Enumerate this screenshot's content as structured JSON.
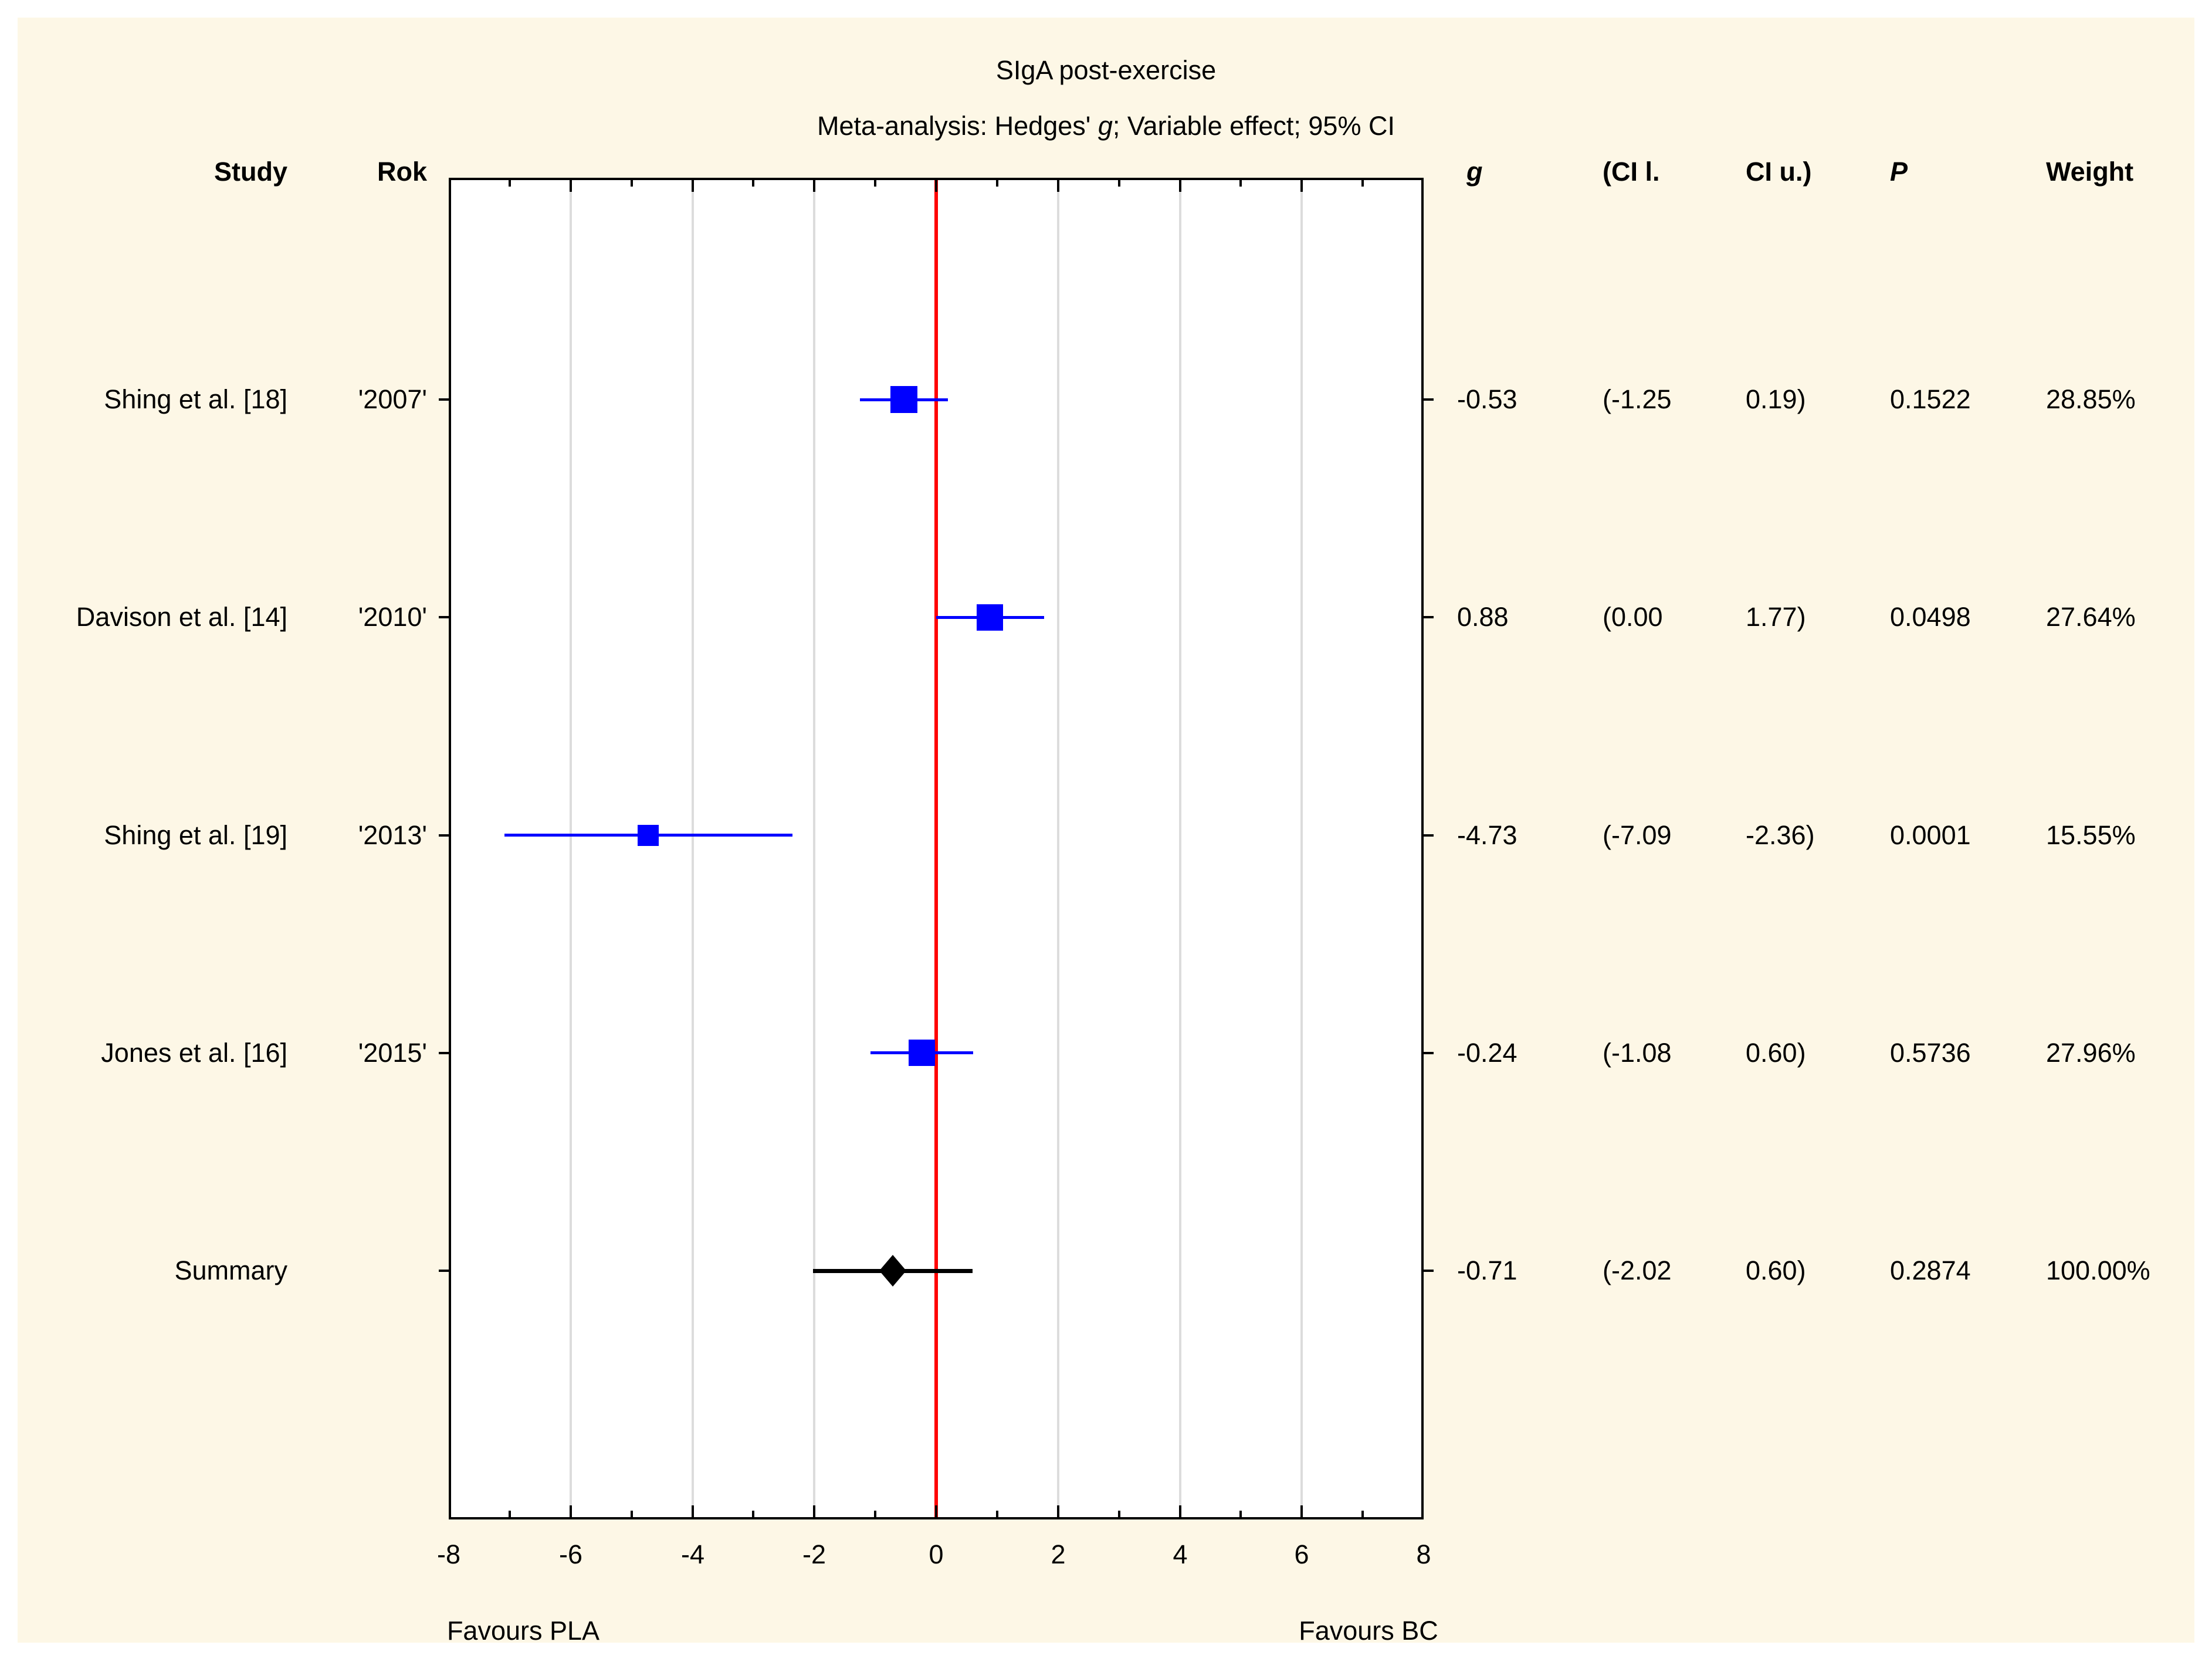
{
  "colors": {
    "panel_background": "#FDF7E6",
    "plot_background": "#FFFFFF",
    "marker_blue": "#0000FF",
    "zero_line_red": "#FF0000",
    "gridline_gray": "#DCDCDC",
    "text": "#000000",
    "summary_black": "#000000"
  },
  "chart_data": {
    "type": "scatter",
    "chart_kind": "forest_plot_meta_analysis",
    "title": "SIgA post-exercise",
    "subtitle_parts": {
      "pre": "Meta-analysis: Hedges' ",
      "italic": "g",
      "post": "; Variable effect; 95% CI"
    },
    "column_headers": {
      "study": "Study",
      "year": "Rok",
      "g": "g",
      "ci_lower": "(CI l.",
      "ci_upper": "CI u.)",
      "p": "P",
      "weight": "Weight"
    },
    "x_axis": {
      "min": -8,
      "max": 8,
      "tick_values": [
        -8,
        -6,
        -4,
        -2,
        0,
        2,
        4,
        6,
        8
      ],
      "tick_labels": [
        "-8",
        "-6",
        "-4",
        "-2",
        "0",
        "2",
        "4",
        "6",
        "8"
      ],
      "minor_tick_values": [
        -7,
        -5,
        -3,
        -1,
        1,
        3,
        5,
        7
      ],
      "gridline_values": [
        -6,
        -4,
        -2,
        2,
        4,
        6
      ],
      "zero_line_value": 0,
      "grid_on": true
    },
    "footer": {
      "favours_left": "Favours PLA",
      "favours_right": "Favours BC"
    },
    "studies": [
      {
        "study": "Shing et al. [18]",
        "year": "'2007'",
        "g": -0.53,
        "ci_lower": -1.25,
        "ci_upper": 0.19,
        "g_label": "-0.53",
        "ci_lower_label": "(-1.25",
        "ci_upper_label": "0.19)",
        "p_label": "0.1522",
        "weight_pct": 28.85,
        "weight_label": "28.85%"
      },
      {
        "study": "Davison et al. [14]",
        "year": "'2010'",
        "g": 0.88,
        "ci_lower": 0.0,
        "ci_upper": 1.77,
        "g_label": "0.88",
        "ci_lower_label": "(0.00",
        "ci_upper_label": "1.77)",
        "p_label": "0.0498",
        "weight_pct": 27.64,
        "weight_label": "27.64%"
      },
      {
        "study": "Shing et al. [19]",
        "year": "'2013'",
        "g": -4.73,
        "ci_lower": -7.09,
        "ci_upper": -2.36,
        "g_label": "-4.73",
        "ci_lower_label": "(-7.09",
        "ci_upper_label": "-2.36)",
        "p_label": "0.0001",
        "weight_pct": 15.55,
        "weight_label": "15.55%"
      },
      {
        "study": "Jones et al. [16]",
        "year": "'2015'",
        "g": -0.24,
        "ci_lower": -1.08,
        "ci_upper": 0.6,
        "g_label": "-0.24",
        "ci_lower_label": "(-1.08",
        "ci_upper_label": "0.60)",
        "p_label": "0.5736",
        "weight_pct": 27.96,
        "weight_label": "27.96%"
      }
    ],
    "summary": {
      "study": "Summary",
      "g": -0.71,
      "ci_lower": -2.02,
      "ci_upper": 0.6,
      "g_label": "-0.71",
      "ci_lower_label": "(-2.02",
      "ci_upper_label": "0.60)",
      "p_label": "0.2874",
      "weight_pct": 100.0,
      "weight_label": "100.00%"
    }
  }
}
